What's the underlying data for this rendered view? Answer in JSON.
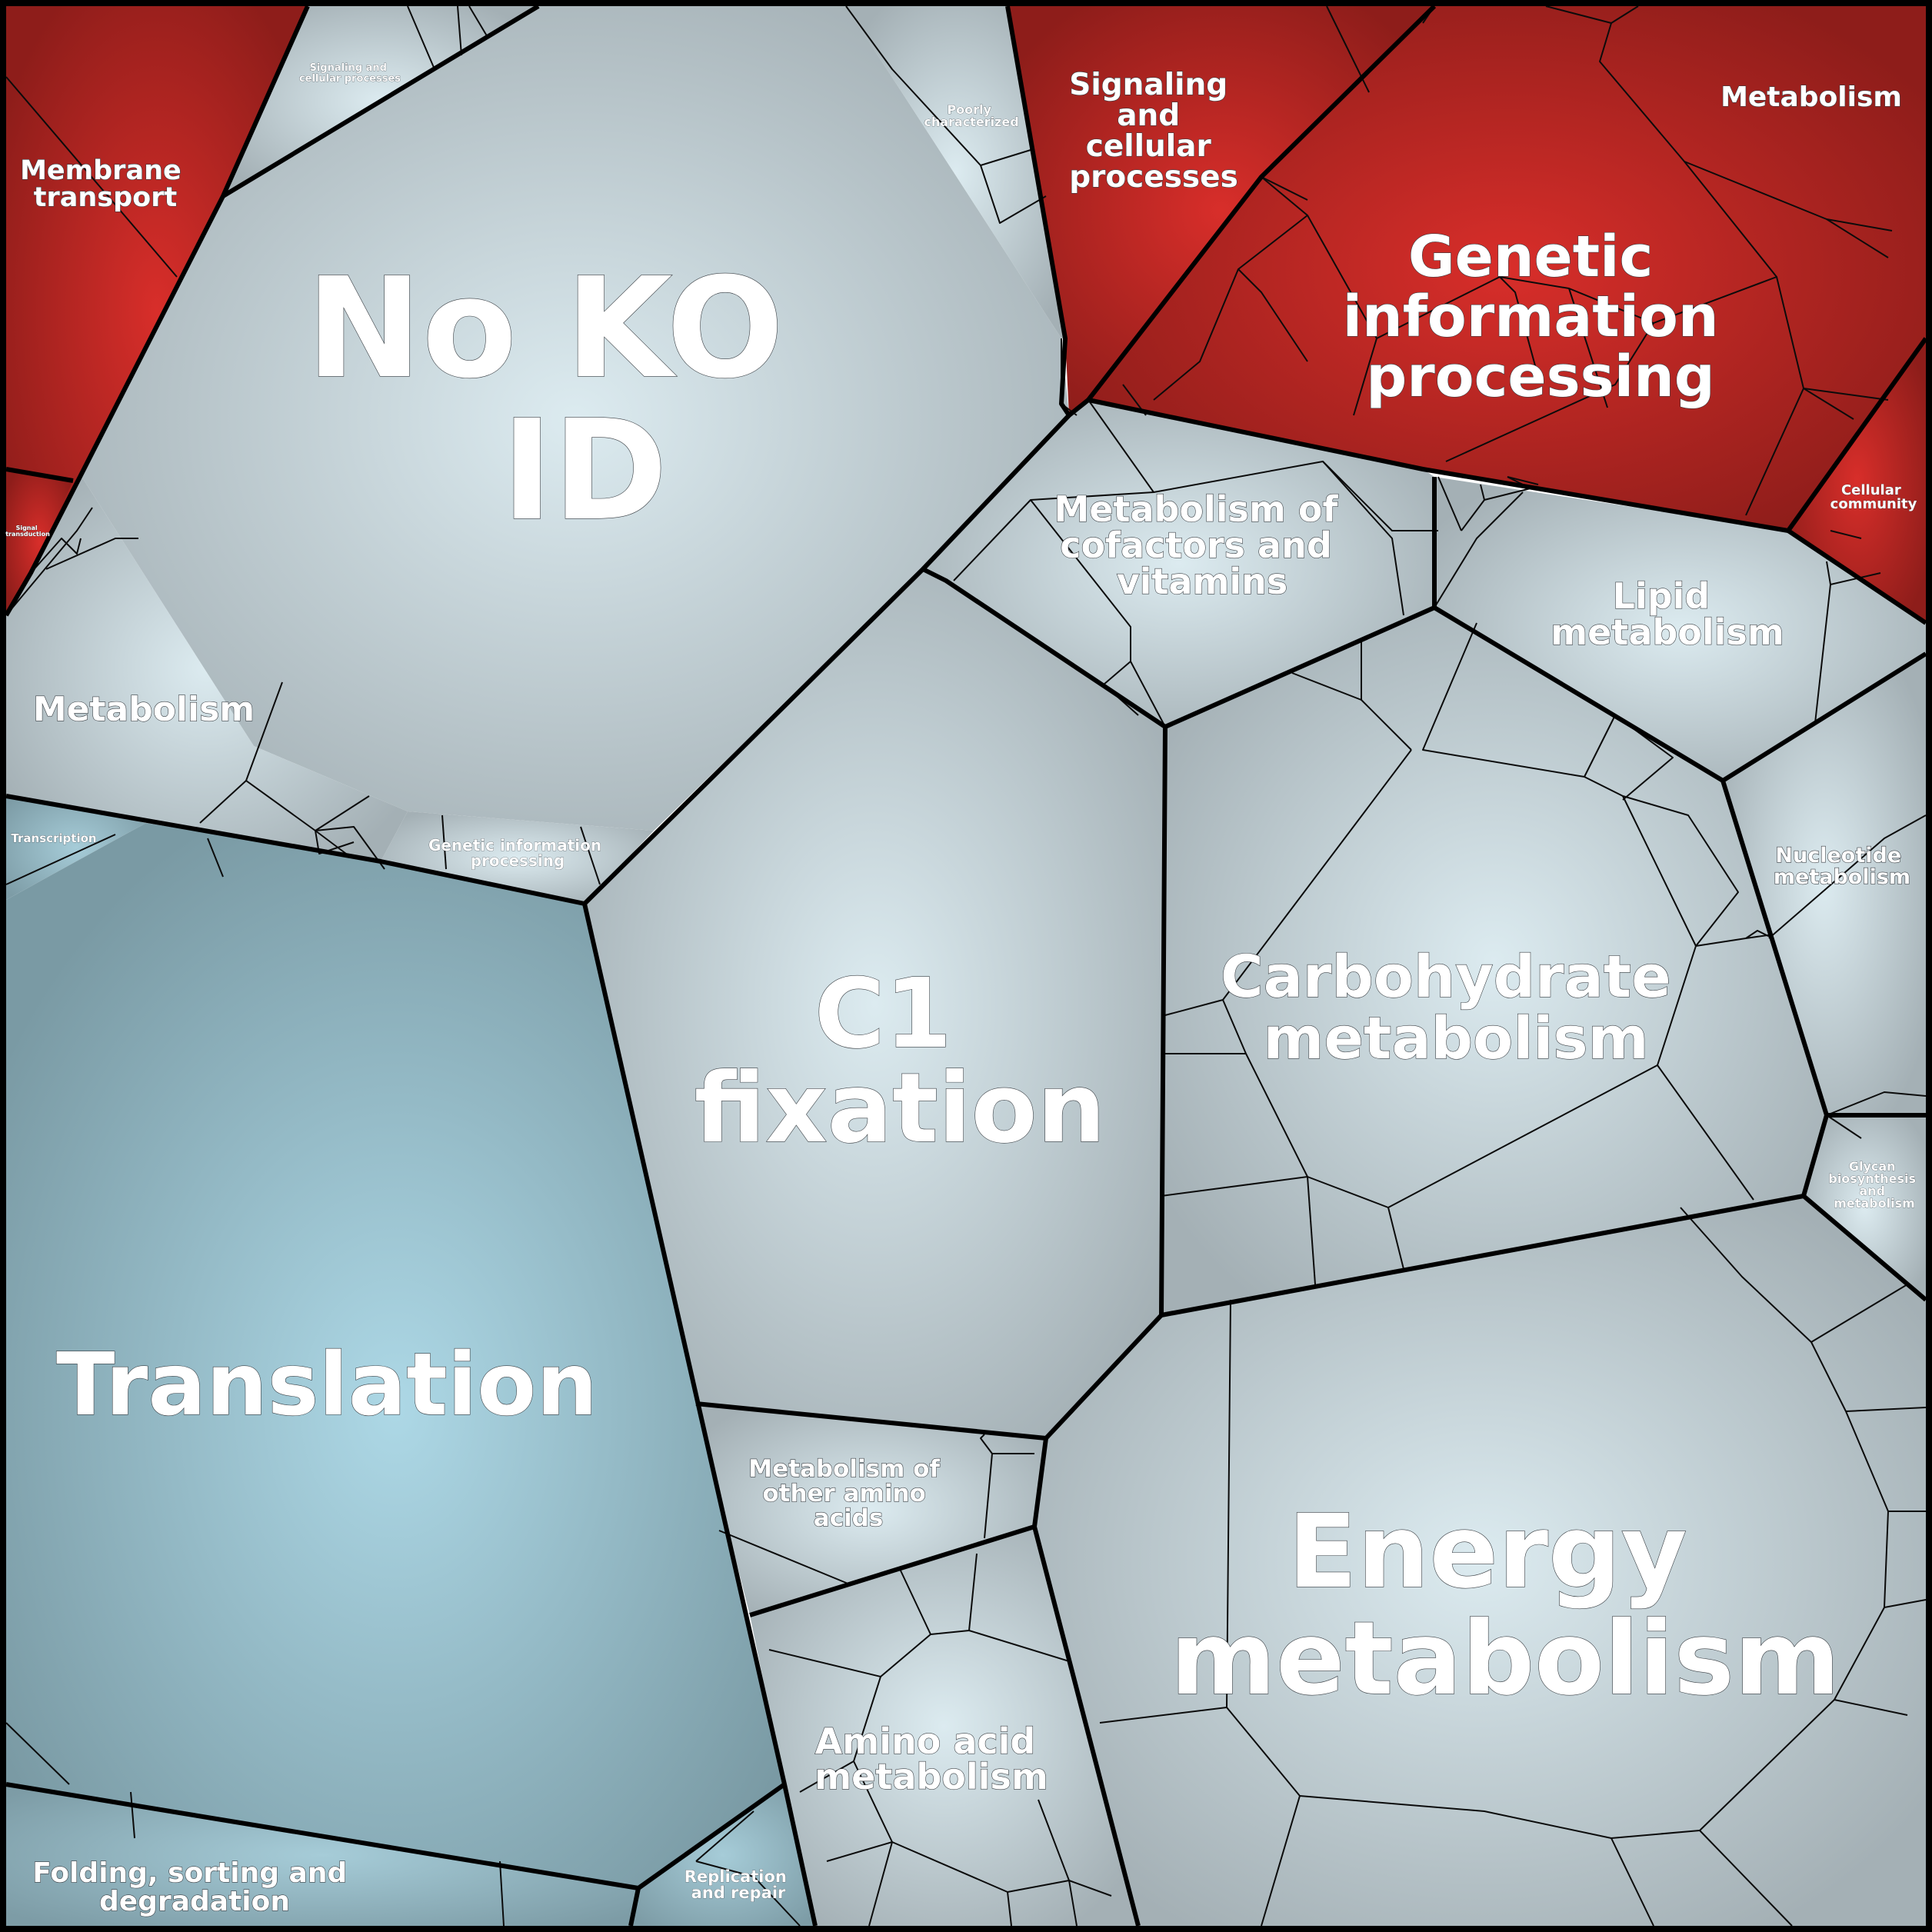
{
  "diagram": {
    "type": "voronoi-treemap",
    "colors": {
      "red_center": "#d82e2a",
      "red_edge": "#8e1d1a",
      "grey_center": "#dcebf0",
      "grey_edge": "#a4b0b5",
      "blue_center": "#add8e6",
      "blue_edge": "#7a9aa4",
      "border": "#000000"
    },
    "labels": {
      "no_ko_id": [
        "No KO",
        "ID"
      ],
      "membrane_transport": [
        "Membrane",
        "transport"
      ],
      "signaling_small": [
        "Signaling and",
        "cellular processes"
      ],
      "poorly_characterized": [
        "Poorly",
        "characterized"
      ],
      "signaling_cellular": [
        "Signaling",
        "and",
        "cellular",
        "processes"
      ],
      "metabolism_top_right": [
        "Metabolism"
      ],
      "genetic_info_processing": [
        "Genetic",
        "information",
        "processing"
      ],
      "cellular_community": [
        "Cellular",
        "community"
      ],
      "signal_transduction": [
        "Signal",
        "transduction"
      ],
      "metabolism_left": [
        "Metabolism"
      ],
      "transcription": [
        "Transcription"
      ],
      "genetic_info_small": [
        "Genetic information",
        "processing"
      ],
      "cofactors_vitamins": [
        "Metabolism of",
        "cofactors and",
        "vitamins"
      ],
      "lipid_metabolism": [
        "Lipid",
        "metabolism"
      ],
      "nucleotide_metabolism": [
        "Nucleotide",
        "metabolism"
      ],
      "carbohydrate_metabolism": [
        "Carbohydrate",
        "metabolism"
      ],
      "glycan": [
        "Glycan",
        "biosynthesis",
        "and",
        "metabolism"
      ],
      "c1_fixation": [
        "C1",
        "fixation"
      ],
      "translation": [
        "Translation"
      ],
      "other_amino_acids": [
        "Metabolism of",
        "other amino",
        "acids"
      ],
      "energy_metabolism": [
        "Energy",
        "metabolism"
      ],
      "amino_acid_metabolism": [
        "Amino acid",
        "metabolism"
      ],
      "folding_sorting": [
        "Folding, sorting and",
        "degradation"
      ],
      "replication_repair": [
        "Replication",
        "and repair"
      ]
    }
  }
}
